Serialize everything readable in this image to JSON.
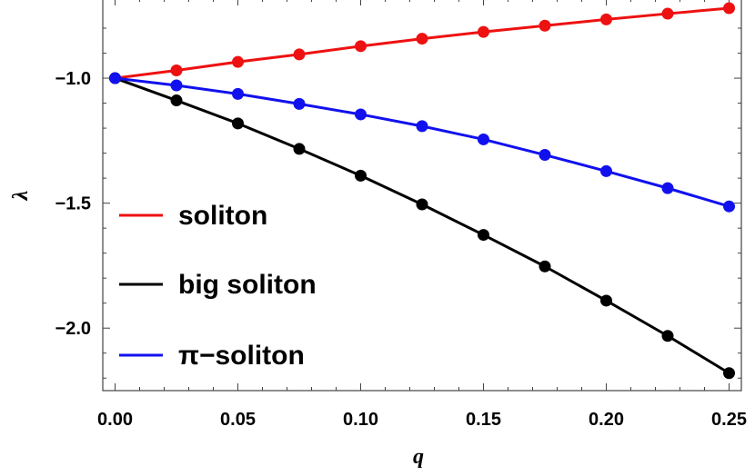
{
  "chart_data": {
    "type": "line",
    "title": "",
    "xlabel": "q",
    "ylabel": "λ",
    "xlim": [
      -0.005,
      0.255
    ],
    "ylim": [
      -2.25,
      -0.68
    ],
    "x": [
      0.0,
      0.025,
      0.05,
      0.075,
      0.1,
      0.125,
      0.15,
      0.175,
      0.2,
      0.225,
      0.25
    ],
    "x_ticks": [
      0.0,
      0.05,
      0.1,
      0.15,
      0.2,
      0.25
    ],
    "x_tick_labels": [
      "0.00",
      "0.05",
      "0.10",
      "0.15",
      "0.20",
      "0.25"
    ],
    "y_ticks": [
      -2.0,
      -1.5,
      -1.0
    ],
    "y_tick_labels": [
      "−2.0",
      "−1.5",
      "−1.0"
    ],
    "grid": false,
    "legend_position": "left",
    "series": [
      {
        "name": "soliton",
        "color": "#ee1111",
        "values": [
          -1.0,
          -0.969,
          -0.935,
          -0.905,
          -0.872,
          -0.842,
          -0.815,
          -0.79,
          -0.765,
          -0.742,
          -0.72
        ]
      },
      {
        "name": "big soliton",
        "color": "#000000",
        "values": [
          -1.0,
          -1.089,
          -1.181,
          -1.283,
          -1.39,
          -1.505,
          -1.627,
          -1.753,
          -1.89,
          -2.031,
          -2.18
        ]
      },
      {
        "name": "π−soliton",
        "color": "#1111ee",
        "values": [
          -1.0,
          -1.029,
          -1.063,
          -1.103,
          -1.145,
          -1.192,
          -1.245,
          -1.307,
          -1.372,
          -1.44,
          -1.513
        ]
      }
    ]
  }
}
